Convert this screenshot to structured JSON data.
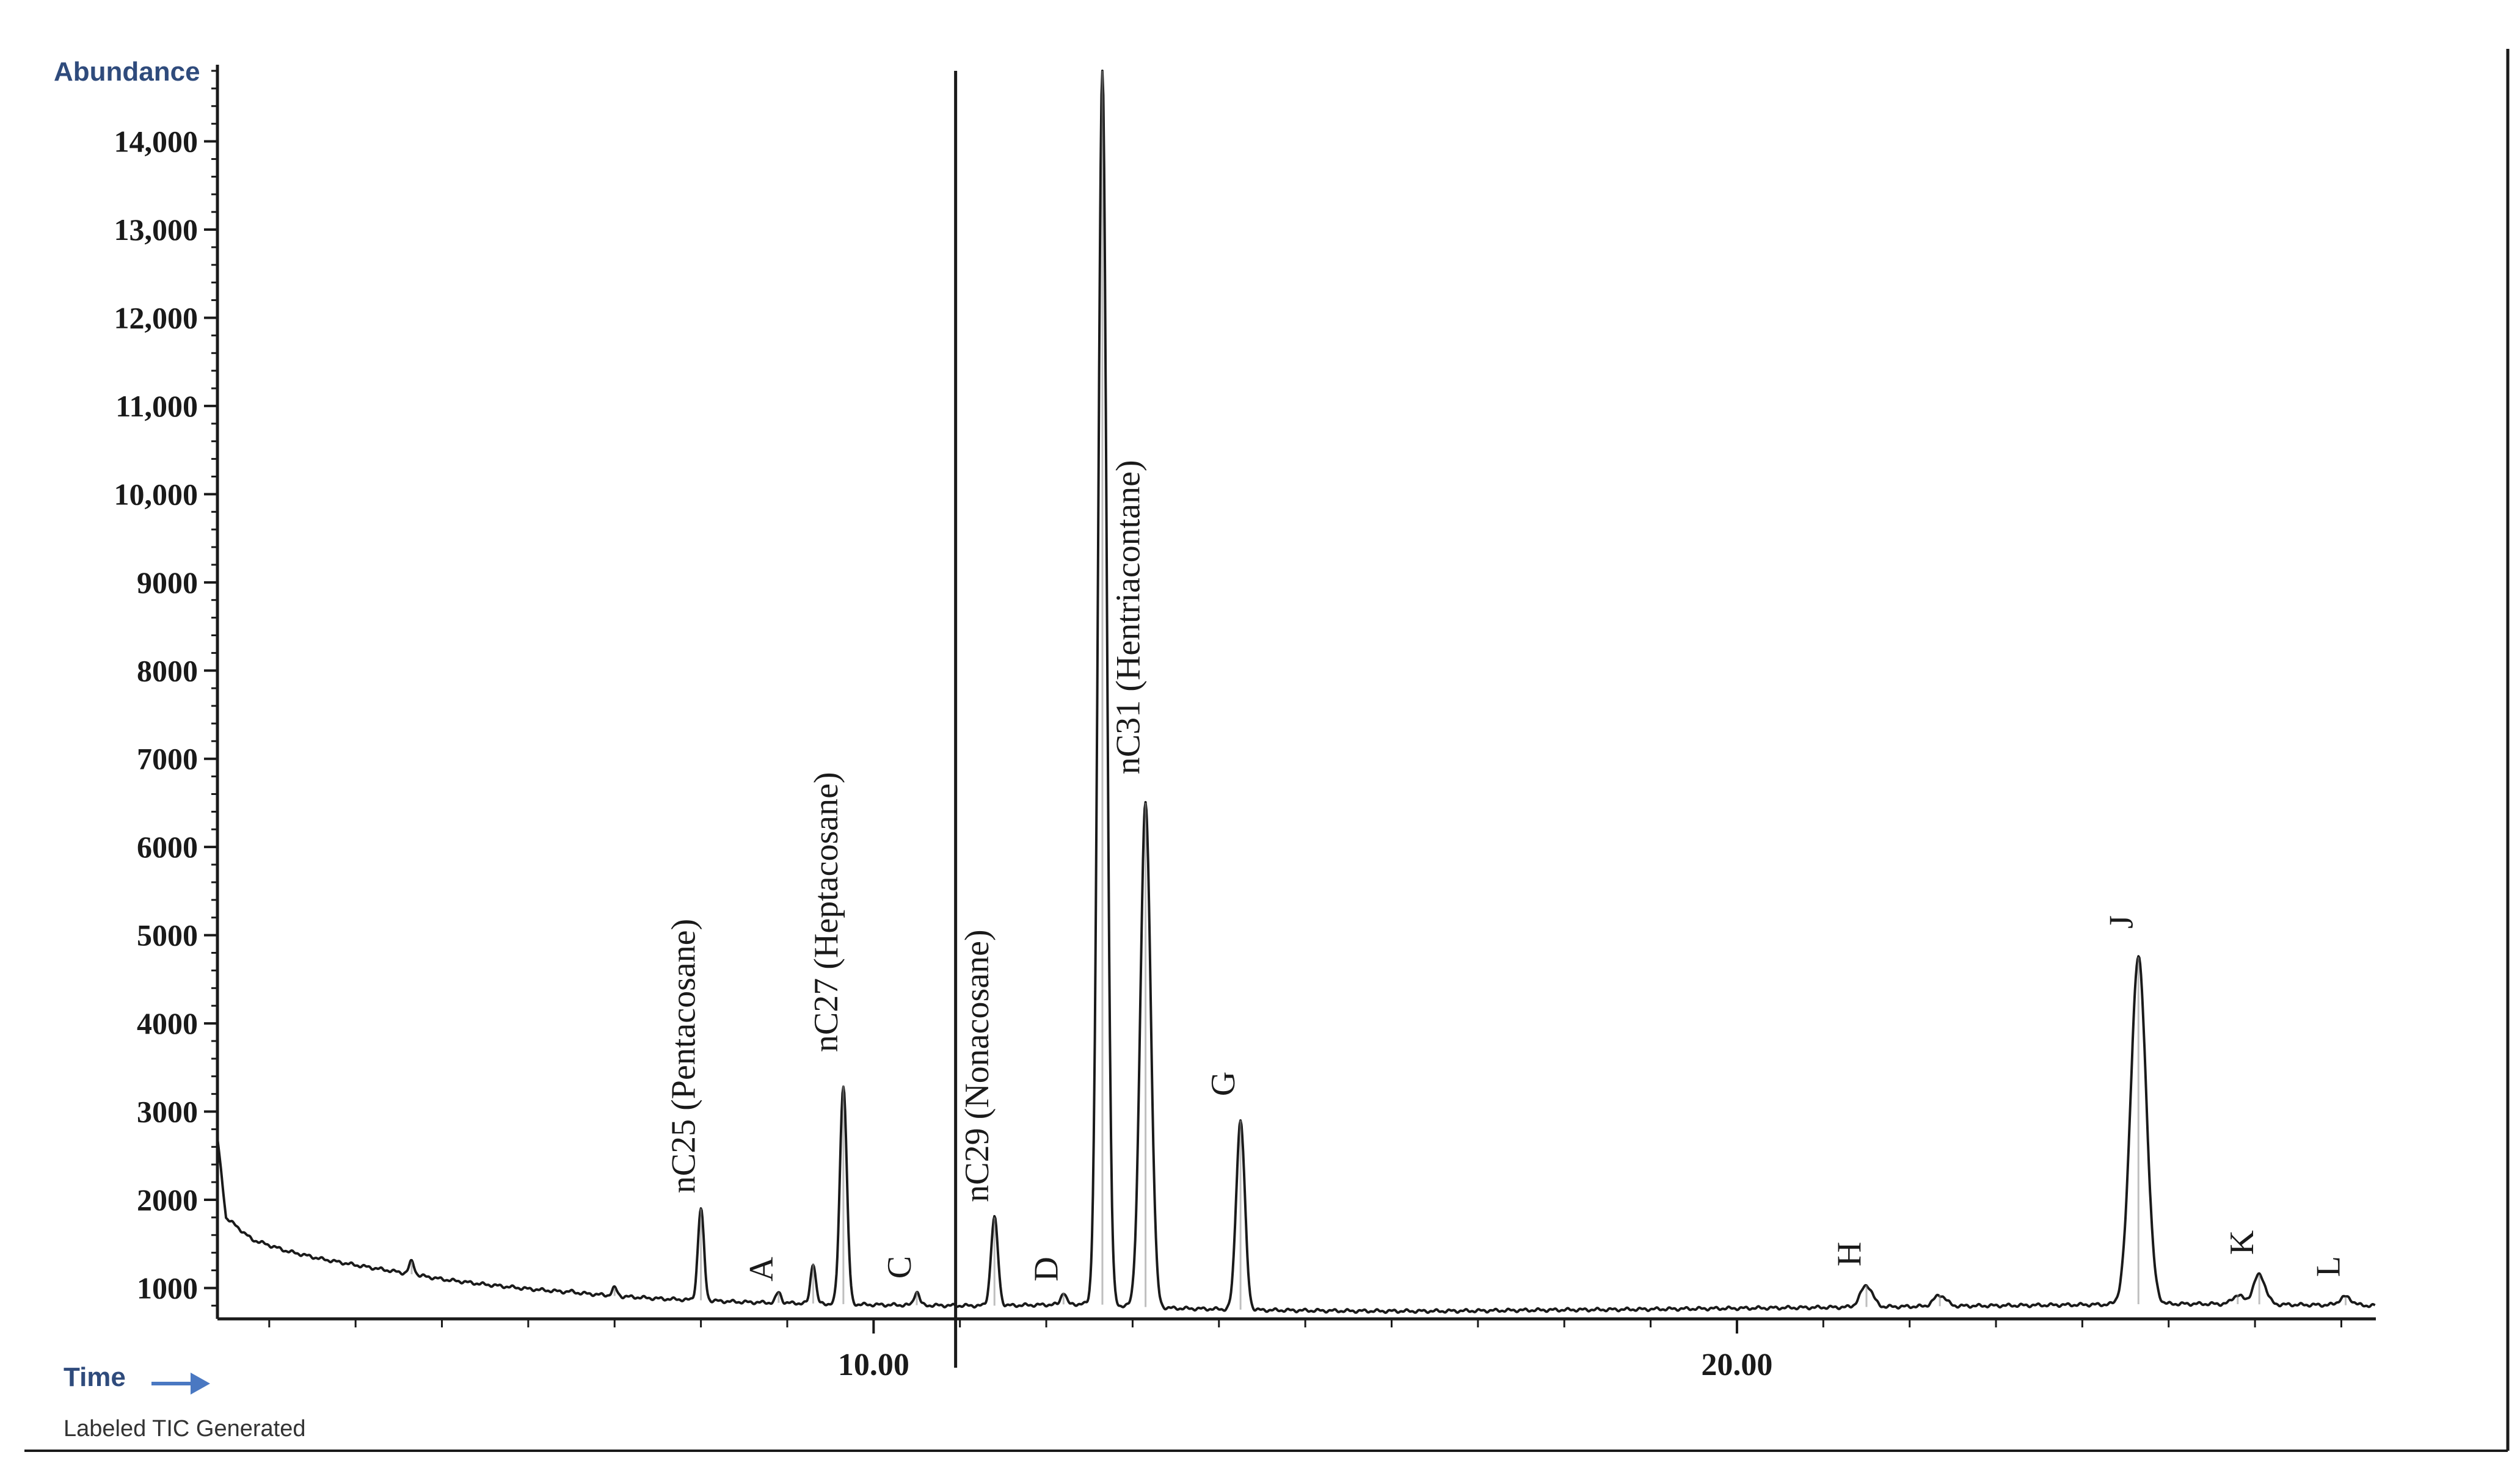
{
  "colors": {
    "axis": "#1a1a1a",
    "trace": "#1a1a1a",
    "peak_highlight": "#8a8a8a",
    "y_title": "#2f4b7c",
    "time_label": "#2f4b7c",
    "time_arrow": "#4a78c2",
    "footer_text": "#333333",
    "background": "#ffffff"
  },
  "icons": {
    "time_arrow": "right-arrow-icon"
  },
  "footer": {
    "caption": "Labeled TIC Generated"
  },
  "chart_data": {
    "type": "line",
    "title": "",
    "xlabel": "Time",
    "ylabel": "Abundance",
    "xlim": [
      2.4,
      27.4
    ],
    "ylim": [
      650,
      14800
    ],
    "x_ticks": [
      {
        "value": 10.0,
        "label": "10.00"
      },
      {
        "value": 20.0,
        "label": "20.00"
      }
    ],
    "x_minor_step": 1.0,
    "y_ticks": [
      {
        "value": 1000,
        "label": "1000"
      },
      {
        "value": 2000,
        "label": "2000"
      },
      {
        "value": 3000,
        "label": "3000"
      },
      {
        "value": 4000,
        "label": "4000"
      },
      {
        "value": 5000,
        "label": "5000"
      },
      {
        "value": 6000,
        "label": "6000"
      },
      {
        "value": 7000,
        "label": "7000"
      },
      {
        "value": 8000,
        "label": "8000"
      },
      {
        "value": 9000,
        "label": "9000"
      },
      {
        "value": 10000,
        "label": "10,000"
      },
      {
        "value": 11000,
        "label": "11,000"
      },
      {
        "value": 12000,
        "label": "12,000"
      },
      {
        "value": 13000,
        "label": "13,000"
      },
      {
        "value": 14000,
        "label": "14,000"
      }
    ],
    "y_minor_step": 200,
    "grid": false,
    "vertical_markers": [
      10.95
    ],
    "baseline": [
      [
        2.4,
        2700
      ],
      [
        2.5,
        1800
      ],
      [
        2.8,
        1550
      ],
      [
        3.2,
        1420
      ],
      [
        3.6,
        1330
      ],
      [
        4.0,
        1260
      ],
      [
        4.5,
        1180
      ],
      [
        5.0,
        1100
      ],
      [
        5.5,
        1040
      ],
      [
        6.0,
        990
      ],
      [
        6.5,
        950
      ],
      [
        7.0,
        910
      ],
      [
        7.5,
        880
      ],
      [
        8.0,
        860
      ],
      [
        8.5,
        840
      ],
      [
        9.0,
        830
      ],
      [
        9.5,
        820
      ],
      [
        10.0,
        810
      ],
      [
        10.5,
        805
      ],
      [
        11.0,
        800
      ],
      [
        11.5,
        800
      ],
      [
        12.0,
        810
      ],
      [
        12.5,
        820
      ],
      [
        13.0,
        790
      ],
      [
        13.5,
        770
      ],
      [
        14.0,
        760
      ],
      [
        14.5,
        750
      ],
      [
        15.0,
        745
      ],
      [
        15.5,
        740
      ],
      [
        16.0,
        738
      ],
      [
        16.5,
        738
      ],
      [
        17.0,
        742
      ],
      [
        17.5,
        748
      ],
      [
        18.0,
        752
      ],
      [
        18.5,
        755
      ],
      [
        19.0,
        760
      ],
      [
        19.5,
        765
      ],
      [
        20.0,
        770
      ],
      [
        20.5,
        775
      ],
      [
        21.0,
        780
      ],
      [
        21.5,
        785
      ],
      [
        22.0,
        790
      ],
      [
        22.5,
        795
      ],
      [
        23.0,
        800
      ],
      [
        23.5,
        805
      ],
      [
        24.0,
        810
      ],
      [
        24.5,
        815
      ],
      [
        25.0,
        820
      ],
      [
        25.5,
        820
      ],
      [
        26.0,
        815
      ],
      [
        26.5,
        810
      ],
      [
        27.0,
        805
      ],
      [
        27.4,
        800
      ]
    ],
    "peaks": [
      {
        "x": 4.65,
        "y": 1300,
        "w": 0.03
      },
      {
        "x": 6.5,
        "y": 960,
        "w": 0.04
      },
      {
        "x": 7.0,
        "y": 1000,
        "w": 0.03
      },
      {
        "x": 8.0,
        "y": 1900,
        "w": 0.035
      },
      {
        "x": 8.9,
        "y": 950,
        "w": 0.03
      },
      {
        "x": 9.3,
        "y": 1280,
        "w": 0.03
      },
      {
        "x": 9.65,
        "y": 3300,
        "w": 0.04
      },
      {
        "x": 10.5,
        "y": 960,
        "w": 0.03
      },
      {
        "x": 11.4,
        "y": 1800,
        "w": 0.04
      },
      {
        "x": 12.2,
        "y": 950,
        "w": 0.03
      },
      {
        "x": 12.65,
        "y": 14800,
        "w": 0.05
      },
      {
        "x": 13.15,
        "y": 6500,
        "w": 0.06
      },
      {
        "x": 14.25,
        "y": 2900,
        "w": 0.05
      },
      {
        "x": 21.5,
        "y": 1030,
        "w": 0.07
      },
      {
        "x": 22.35,
        "y": 920,
        "w": 0.07
      },
      {
        "x": 24.65,
        "y": 4750,
        "w": 0.09
      },
      {
        "x": 25.8,
        "y": 920,
        "w": 0.06
      },
      {
        "x": 26.05,
        "y": 1150,
        "w": 0.07
      },
      {
        "x": 27.05,
        "y": 900,
        "w": 0.07
      }
    ],
    "annotations": [
      {
        "text": "nC25 (Pentacosane)",
        "x": 8.0,
        "y": 1950,
        "vertical": true
      },
      {
        "text": "A",
        "x": 8.9,
        "y": 950,
        "vertical": true
      },
      {
        "text": "nC27 (Heptacosane)",
        "x": 9.65,
        "y": 3550,
        "vertical": true
      },
      {
        "text": "C",
        "x": 10.5,
        "y": 980,
        "vertical": true
      },
      {
        "text": "nC29 (Nonacosane)",
        "x": 11.4,
        "y": 1850,
        "vertical": true
      },
      {
        "text": "D",
        "x": 12.2,
        "y": 950,
        "vertical": true
      },
      {
        "text": "nC31 (Hentriacontane)",
        "x": 13.15,
        "y": 6700,
        "vertical": true
      },
      {
        "text": "G",
        "x": 14.25,
        "y": 3050,
        "vertical": true
      },
      {
        "text": "H",
        "x": 21.5,
        "y": 1120,
        "vertical": true
      },
      {
        "text": "J",
        "x": 24.65,
        "y": 4950,
        "vertical": true
      },
      {
        "text": "K",
        "x": 26.05,
        "y": 1250,
        "vertical": true
      },
      {
        "text": "L",
        "x": 27.05,
        "y": 1000,
        "vertical": true
      }
    ]
  }
}
